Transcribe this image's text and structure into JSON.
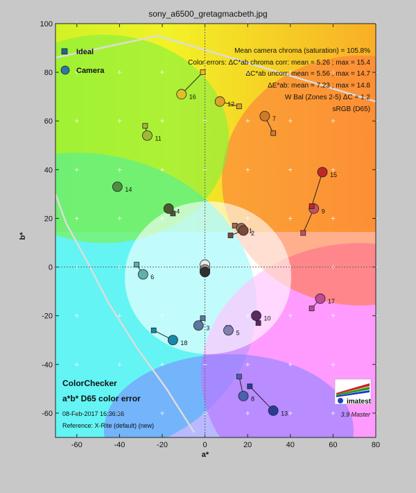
{
  "chart_data": {
    "type": "scatter",
    "title": "sony_a6500_gretagmacbeth.jpg",
    "xlabel": "a*",
    "ylabel": "b*",
    "xlim": [
      -70,
      80
    ],
    "ylim": [
      -70,
      100
    ],
    "xticks": [
      -60,
      -40,
      -20,
      0,
      20,
      40,
      60,
      80
    ],
    "yticks": [
      -60,
      -40,
      -20,
      0,
      20,
      40,
      60,
      80,
      100
    ],
    "tick_labels_x": [
      "-60",
      "-40",
      "-20",
      "0",
      "20",
      "40",
      "60",
      "80"
    ],
    "tick_labels_y": [
      "-60",
      "-40",
      "-20",
      "0",
      "20",
      "40",
      "60",
      "80",
      "100"
    ],
    "legend": {
      "placement": "top-left",
      "ideal_label": "Ideal",
      "camera_label": "Camera"
    },
    "stats": [
      "Mean camera chroma (saturation) = 105.8%",
      "Color errors: ΔC*ab chroma corr:  mean = 5.26 ;  max = 15.4",
      "ΔC*ab uncorr:  mean = 5.56 ;  max = 14.7",
      "ΔE*ab:  mean = 7.23 ;  max = 14.8",
      "W Bal (Zones 2-5)  ΔC = 1.2",
      "sRGB (D65)"
    ],
    "chart_name": "ColorChecker",
    "chart_subtitle": "a*b* D65 color error",
    "date": "08-Feb-2017 16:36:36",
    "reference": "Reference: X-Rite (default) (new)",
    "logo_text": "imatest",
    "version": "3.9  Master",
    "gamut_boundary": [
      [
        -70,
        86
      ],
      [
        -22,
        95
      ],
      [
        80,
        68
      ]
    ],
    "gamut_boundary_left": [
      [
        -70,
        30
      ],
      [
        -65,
        18
      ],
      [
        -55,
        2
      ],
      [
        -45,
        -15
      ],
      [
        -32,
        -33
      ],
      [
        -18,
        -50
      ],
      [
        -5,
        -68
      ]
    ],
    "points": [
      {
        "id": "1",
        "ideal": [
          14,
          17
        ],
        "camera": [
          17,
          16
        ],
        "color": "#9b6a58"
      },
      {
        "id": "2",
        "ideal": [
          12,
          13
        ],
        "camera": [
          18,
          15
        ],
        "color": "#7a4a3a"
      },
      {
        "id": "3",
        "ideal": [
          -1,
          -21
        ],
        "camera": [
          -3,
          -24
        ],
        "color": "#5a78a0"
      },
      {
        "id": "4",
        "ideal": [
          -15,
          22
        ],
        "camera": [
          -17,
          24
        ],
        "color": "#4a5a30"
      },
      {
        "id": "5",
        "ideal": [
          11,
          -25
        ],
        "camera": [
          11,
          -26
        ],
        "color": "#8080b0"
      },
      {
        "id": "6",
        "ideal": [
          -32,
          1
        ],
        "camera": [
          -29,
          -3
        ],
        "color": "#60b0a8"
      },
      {
        "id": "7",
        "ideal": [
          32,
          55
        ],
        "camera": [
          28,
          62
        ],
        "color": "#d07a28"
      },
      {
        "id": "8",
        "ideal": [
          16,
          -45
        ],
        "camera": [
          18,
          -53
        ],
        "color": "#4a60b0"
      },
      {
        "id": "9",
        "ideal": [
          46,
          14
        ],
        "camera": [
          51,
          24
        ],
        "color": "#c85060"
      },
      {
        "id": "10",
        "ideal": [
          25,
          -23
        ],
        "camera": [
          24,
          -20
        ],
        "color": "#5a2a60"
      },
      {
        "id": "11",
        "ideal": [
          -28,
          58
        ],
        "camera": [
          -27,
          54
        ],
        "color": "#a0b838"
      },
      {
        "id": "12",
        "ideal": [
          16,
          66
        ],
        "camera": [
          7,
          68
        ],
        "color": "#e0a028"
      },
      {
        "id": "13",
        "ideal": [
          21,
          -49
        ],
        "camera": [
          32,
          -59
        ],
        "color": "#2a3c98"
      },
      {
        "id": "14",
        "ideal": [
          -41,
          33
        ],
        "camera": [
          -41,
          33
        ],
        "color": "#4a9040"
      },
      {
        "id": "15",
        "ideal": [
          50,
          25
        ],
        "camera": [
          55,
          39
        ],
        "color": "#c02828"
      },
      {
        "id": "16",
        "ideal": [
          -1,
          80
        ],
        "camera": [
          -11,
          71
        ],
        "color": "#e0c028"
      },
      {
        "id": "17",
        "ideal": [
          50,
          -17
        ],
        "camera": [
          54,
          -13
        ],
        "color": "#c04a98"
      },
      {
        "id": "18",
        "ideal": [
          -24,
          -26
        ],
        "camera": [
          -15,
          -30
        ],
        "color": "#1888a8"
      },
      {
        "id": "19",
        "ideal": [
          0,
          1
        ],
        "camera": [
          0,
          1
        ],
        "color": "#e8e8e8"
      },
      {
        "id": "20",
        "ideal": [
          0,
          -1
        ],
        "camera": [
          0,
          -1
        ],
        "color": "#c0c0c0"
      },
      {
        "id": "21",
        "ideal": [
          0,
          -1
        ],
        "camera": [
          0,
          -1
        ],
        "color": "#a0a0a0"
      },
      {
        "id": "22",
        "ideal": [
          0,
          -2
        ],
        "camera": [
          0,
          -2
        ],
        "color": "#787878"
      },
      {
        "id": "23",
        "ideal": [
          0,
          -2
        ],
        "camera": [
          0,
          -2
        ],
        "color": "#505050"
      },
      {
        "id": "24",
        "ideal": [
          0,
          -2
        ],
        "camera": [
          0,
          -2
        ],
        "color": "#303030"
      }
    ],
    "grid": true
  }
}
